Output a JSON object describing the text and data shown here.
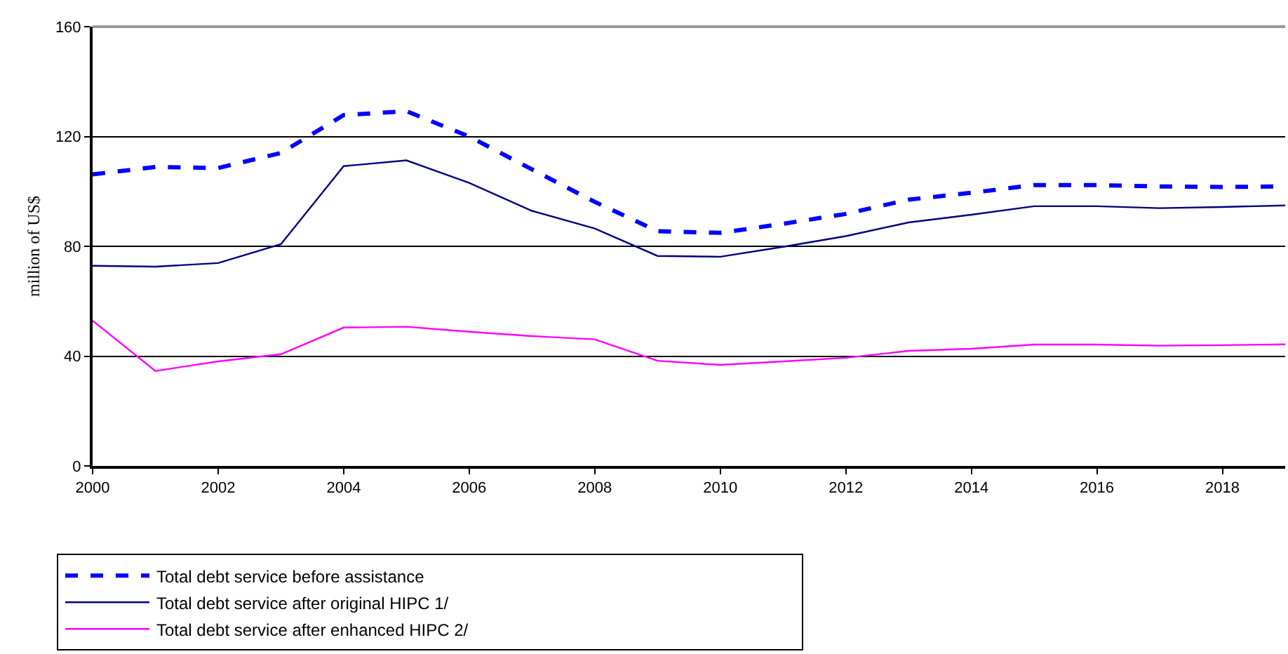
{
  "chart_data": {
    "type": "line",
    "ylabel": "million of US$",
    "x": [
      2000,
      2001,
      2002,
      2003,
      2004,
      2005,
      2006,
      2007,
      2008,
      2009,
      2010,
      2011,
      2012,
      2013,
      2014,
      2015,
      2016,
      2017,
      2018,
      2019
    ],
    "xlim": [
      2000,
      2019
    ],
    "xticks": [
      2000,
      2002,
      2004,
      2006,
      2008,
      2010,
      2012,
      2014,
      2016,
      2018
    ],
    "ylim": [
      0,
      160
    ],
    "yticks": [
      0,
      40,
      80,
      120,
      160
    ],
    "grid": "y",
    "legend": "bottom",
    "marker": "none",
    "series": [
      {
        "name": "Total debt service before assistance",
        "color": "#0000ff",
        "line_style": "dashed",
        "values": [
          106.2,
          108.9,
          108.5,
          114,
          127.8,
          129.2,
          120,
          108,
          96.2,
          85.5,
          84.9,
          88.2,
          91.8,
          97,
          99.5,
          102.3,
          102.3,
          101.8,
          101.6,
          101.8
        ]
      },
      {
        "name": "Total debt service after original HIPC 1/",
        "color": "#000080",
        "line_style": "solid",
        "values": [
          72.9,
          72.6,
          73.9,
          80.8,
          109.2,
          111.3,
          103.1,
          92.9,
          86.5,
          76.5,
          76.2,
          79.8,
          83.7,
          88.7,
          91.5,
          94.6,
          94.6,
          93.9,
          94.3,
          94.9
        ]
      },
      {
        "name": "Total debt service after enhanced HIPC 2/",
        "color": "#ff00ff",
        "line_style": "solid",
        "values": [
          52.9,
          34.6,
          38.1,
          40.7,
          50.4,
          50.7,
          48.9,
          47.3,
          46.1,
          38.3,
          36.8,
          38.1,
          39.4,
          41.9,
          42.7,
          44.2,
          44.2,
          43.8,
          44,
          44.3
        ]
      }
    ]
  }
}
